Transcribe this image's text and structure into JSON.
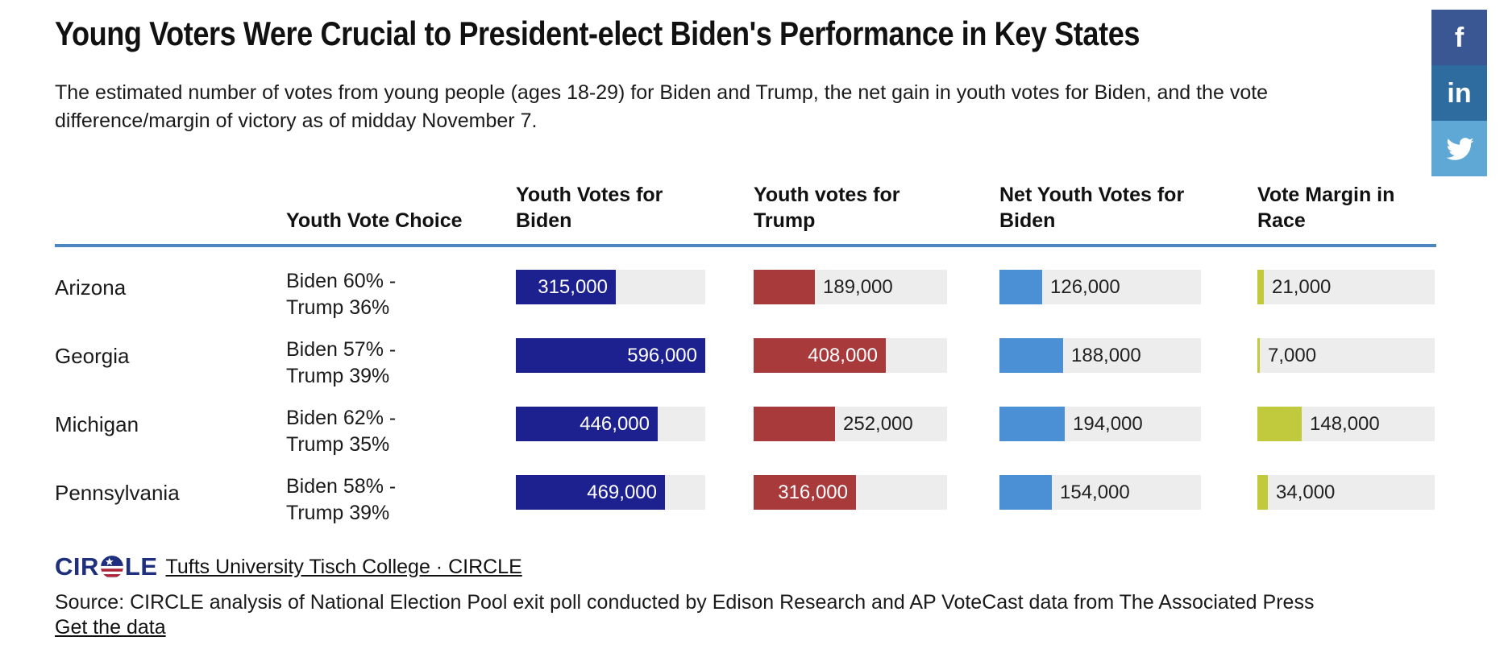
{
  "chart_data": {
    "type": "table",
    "title": "Young Voters Were Crucial to President-elect Biden's Performance in Key States",
    "subtitle": "The estimated number of votes from young people (ages 18-29) for Biden and Trump, the net gain in youth votes for Biden, and the vote difference/margin of victory as of midday November 7.",
    "columns": [
      "",
      "Youth Vote Choice",
      "Youth Votes for Biden",
      "Youth votes for Trump",
      "Net Youth Votes for Biden",
      "Vote Margin in Race"
    ],
    "bar_scale_max": 596000,
    "rows": [
      {
        "state": "Arizona",
        "choice": [
          "Biden 60% -",
          "Trump 36%"
        ],
        "youth_votes_biden": 315000,
        "youth_votes_trump": 189000,
        "net_youth_votes_biden": 126000,
        "vote_margin": 21000
      },
      {
        "state": "Georgia",
        "choice": [
          "Biden 57% -",
          "Trump 39%"
        ],
        "youth_votes_biden": 596000,
        "youth_votes_trump": 408000,
        "net_youth_votes_biden": 188000,
        "vote_margin": 7000
      },
      {
        "state": "Michigan",
        "choice": [
          "Biden 62% -",
          "Trump 35%"
        ],
        "youth_votes_biden": 446000,
        "youth_votes_trump": 252000,
        "net_youth_votes_biden": 194000,
        "vote_margin": 148000
      },
      {
        "state": "Pennsylvania",
        "choice": [
          "Biden 58% -",
          "Trump 39%"
        ],
        "youth_votes_biden": 469000,
        "youth_votes_trump": 316000,
        "net_youth_votes_biden": 154000,
        "vote_margin": 34000
      }
    ],
    "colors": {
      "biden_bar": "#1d2190",
      "trump_bar": "#a83a3c",
      "net_bar": "#4b90d5",
      "margin_bar": "#c1c93d",
      "bar_track": "#ededed",
      "header_rule": "#4c86c0"
    }
  },
  "share": {
    "buttons": [
      {
        "name": "facebook",
        "glyph": "f",
        "color": "#3a5794"
      },
      {
        "name": "linkedin",
        "glyph": "in",
        "color": "#2e6b9f"
      },
      {
        "name": "twitter",
        "glyph": "",
        "color": "#5fa8d5"
      }
    ]
  },
  "footer": {
    "logo": {
      "left": "CIR",
      "right": "LE",
      "color": "#1e2f7d"
    },
    "byline_link": "Tufts University Tisch College · CIRCLE",
    "source": "Source: CIRCLE analysis of National Election Pool exit poll conducted by Edison Research and AP VoteCast data from The Associated Press",
    "get_data_link": "Get the data"
  }
}
